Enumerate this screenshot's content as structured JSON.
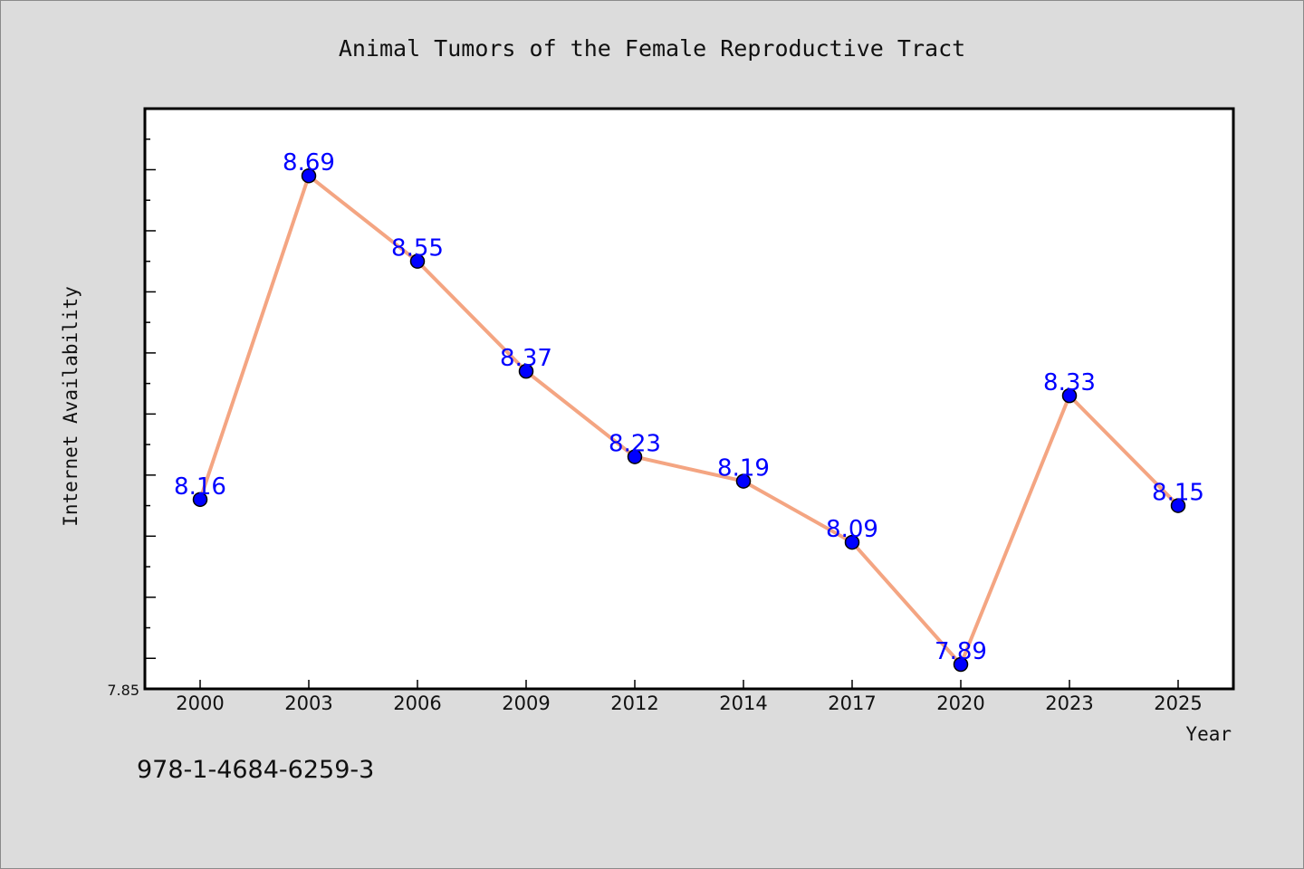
{
  "chart_data": {
    "type": "line",
    "title": "Animal Tumors of the Female Reproductive Tract",
    "xlabel": "Year",
    "ylabel": "Internet Availability",
    "categories": [
      "2000",
      "2003",
      "2006",
      "2009",
      "2012",
      "2014",
      "2017",
      "2020",
      "2023",
      "2025"
    ],
    "values": [
      8.16,
      8.69,
      8.55,
      8.37,
      8.23,
      8.19,
      8.09,
      7.89,
      8.33,
      8.15
    ],
    "data_labels": [
      "8.16",
      "8.69",
      "8.55",
      "8.37",
      "8.23",
      "8.19",
      "8.09",
      "7.89",
      "8.33",
      "8.15"
    ],
    "ylim": [
      7.85,
      8.8
    ],
    "y_tick_labels": [
      "7.85"
    ],
    "grid": false,
    "line_color": "#f4a582",
    "marker_color": "#0000ff",
    "label_color": "#0000ff"
  },
  "footer": {
    "isbn": "978-1-4684-6259-3"
  }
}
